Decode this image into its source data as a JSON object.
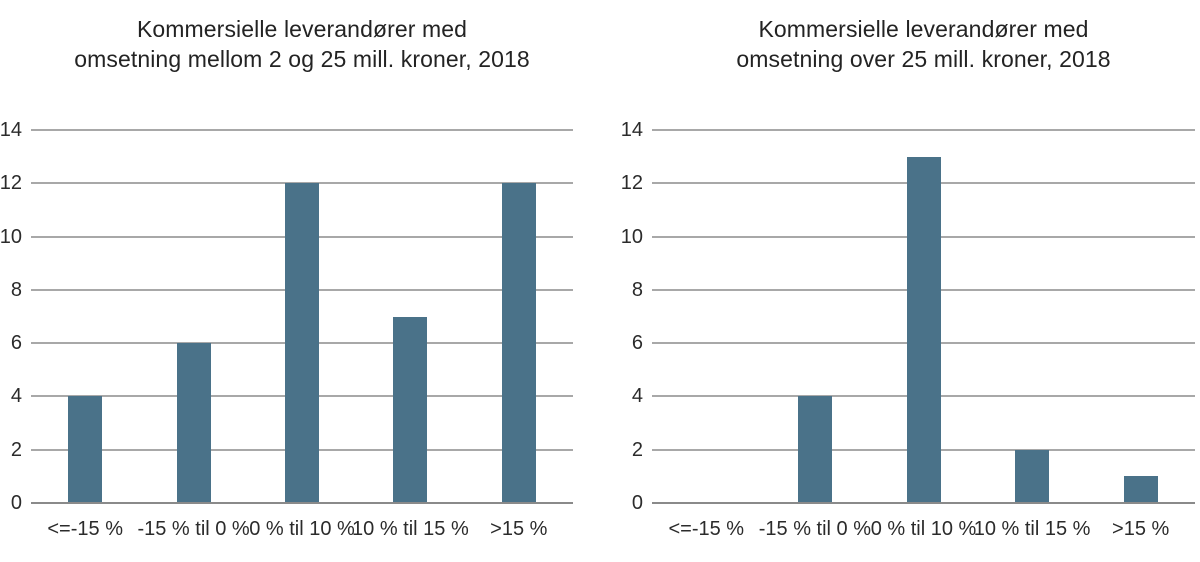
{
  "figure": {
    "background_color": "#ffffff",
    "bar_color": "#4a7289",
    "gridline_color": "#a8a8a8",
    "baseline_color": "#8a8a8a",
    "text_color": "#232323"
  },
  "chart_data": [
    {
      "type": "bar",
      "title": "Kommersielle leverandører med omsetning mellom 2 og 25 mill. kroner, 2018",
      "title_lines": [
        "Kommersielle leverandører med",
        "omsetning mellom 2 og 25 mill. kroner, 2018"
      ],
      "categories": [
        "<=-15 %",
        "-15 % til 0 %",
        "0 % til 10 %",
        "10 % til 15 %",
        ">15 %"
      ],
      "values": [
        4,
        6,
        12,
        7,
        12
      ],
      "xlabel": "",
      "ylabel": "",
      "ylim": [
        0,
        14
      ],
      "yticks": [
        0,
        2,
        4,
        6,
        8,
        10,
        12,
        14
      ],
      "grid": "horizontal",
      "legend": "none"
    },
    {
      "type": "bar",
      "title": "Kommersielle leverandører med omsetning over 25 mill. kroner, 2018",
      "title_lines": [
        "Kommersielle leverandører med",
        "omsetning over 25 mill. kroner, 2018"
      ],
      "categories": [
        "<=-15 %",
        "-15 % til 0 %",
        "0 % til 10 %",
        "10 % til 15 %",
        ">15 %"
      ],
      "values": [
        0,
        4,
        13,
        2,
        1
      ],
      "xlabel": "",
      "ylabel": "",
      "ylim": [
        0,
        14
      ],
      "yticks": [
        0,
        2,
        4,
        6,
        8,
        10,
        12,
        14
      ],
      "grid": "horizontal",
      "legend": "none"
    }
  ]
}
